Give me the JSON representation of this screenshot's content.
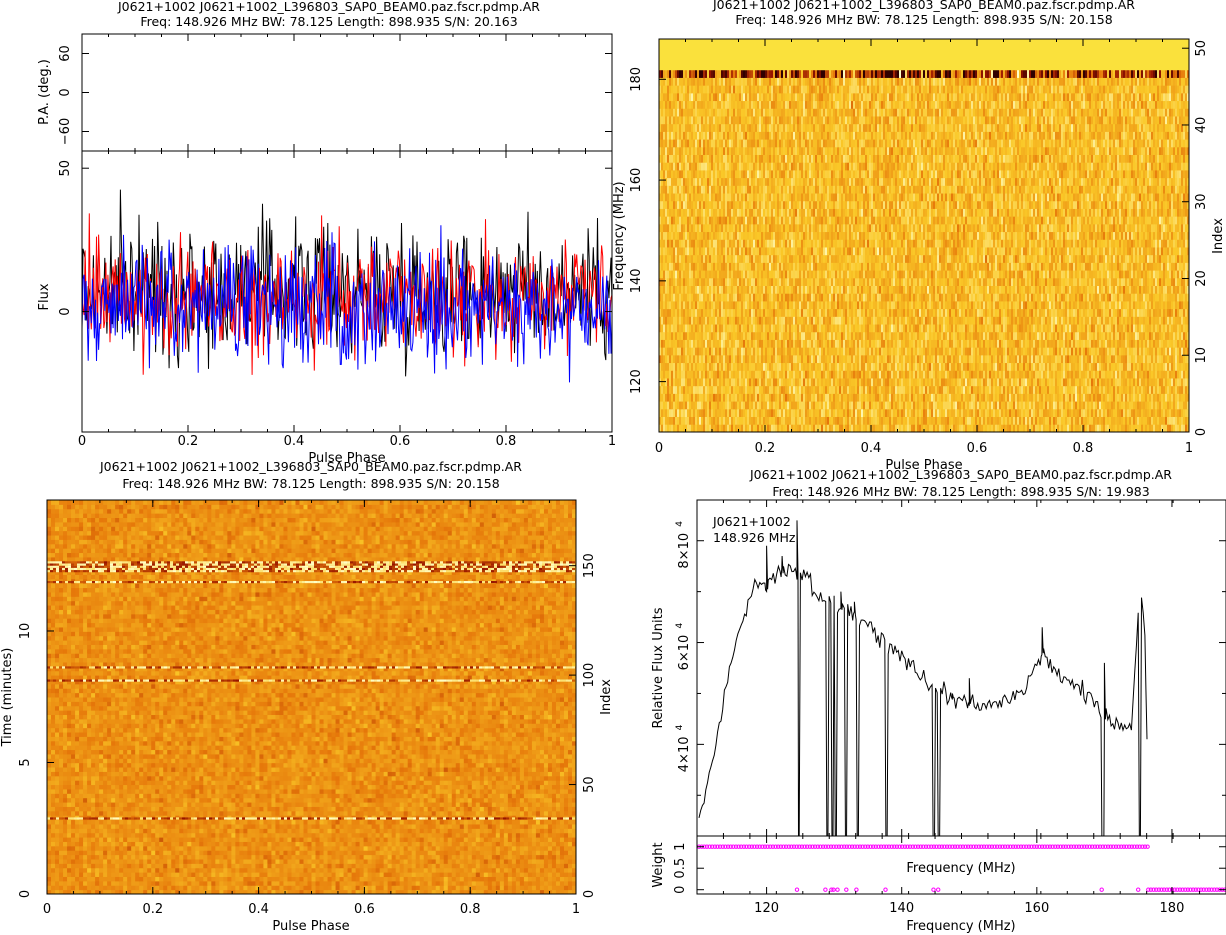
{
  "figure_title": "",
  "chart_data": [
    {
      "type": "line",
      "panel": "profile",
      "titles": [
        "J0621+1002  J0621+1002_L396803_SAP0_BEAM0.paz.fscr.pdmp.AR",
        "Freq: 148.926 MHz BW: 78.125 Length: 898.935 S/N: 20.163"
      ],
      "pa": {
        "ylabel": "P.A. (deg.)",
        "ylim": [
          -90,
          90
        ],
        "yticks": [
          -60,
          0,
          60
        ]
      },
      "flux": {
        "ylabel": "Flux",
        "ylim": [
          -42,
          56
        ],
        "yticks": [
          0,
          50
        ],
        "series": [
          {
            "color": "#000000",
            "mean": 8,
            "noise": 11
          },
          {
            "color": "#ff0000",
            "mean": 5,
            "noise": 10
          },
          {
            "color": "#0000ff",
            "mean": 2,
            "noise": 10
          }
        ],
        "n_bins": 512
      },
      "xlabel": "Pulse Phase",
      "xlim": [
        0,
        1
      ],
      "xticks": [
        0,
        0.2,
        0.4,
        0.6,
        0.8,
        1
      ]
    },
    {
      "type": "heatmap",
      "panel": "phase-frequency",
      "titles": [
        "J0621+1002  J0621+1002_L396803_SAP0_BEAM0.paz.fscr.pdmp.AR",
        "Freq: 148.926 MHz BW: 78.125 Length: 898.935 S/N: 20.158"
      ],
      "xlabel": "Pulse Phase",
      "xlim": [
        0,
        1
      ],
      "xticks": [
        0,
        0.2,
        0.4,
        0.6,
        0.8,
        1
      ],
      "ylabel": "Frequency (MHz)",
      "ylim": [
        110,
        188
      ],
      "yticks": [
        120,
        140,
        160,
        180
      ],
      "y2label": "Index",
      "y2lim": [
        0,
        51.2
      ],
      "y2ticks": [
        0,
        10,
        20,
        30,
        40,
        50
      ],
      "colormap": "heat",
      "rows": 51,
      "flagged_channel_index_ranges": [
        [
          47,
          51
        ]
      ],
      "bright_channel_index": 46
    },
    {
      "type": "heatmap",
      "panel": "phase-time",
      "titles": [
        "J0621+1002  J0621+1002_L396803_SAP0_BEAM0.paz.fscr.pdmp.AR",
        "Freq: 148.926 MHz BW: 78.125 Length: 898.935 S/N: 20.158"
      ],
      "xlabel": "Pulse Phase",
      "xlim": [
        0,
        1
      ],
      "xticks": [
        0,
        0.2,
        0.4,
        0.6,
        0.8,
        1
      ],
      "ylabel": "Time (minutes)",
      "ylim": [
        0,
        14.98
      ],
      "yticks": [
        0,
        5,
        10
      ],
      "y2label": "Index",
      "y2lim": [
        0,
        180
      ],
      "y2ticks": [
        0,
        50,
        100,
        150
      ],
      "colormap": "heat",
      "rows": 180,
      "highlight_subint_indices": [
        34,
        97,
        103,
        142,
        147,
        148,
        149,
        150,
        151
      ]
    },
    {
      "type": "line",
      "panel": "bandpass",
      "titles": [
        "J0621+1002  J0621+1002_L396803_SAP0_BEAM0.paz.fscr.pdmp.AR",
        "Freq: 148.926 MHz BW: 78.125 Length: 898.935 S/N: 19.983"
      ],
      "annotations": [
        "J0621+1002",
        "148.926 MHz"
      ],
      "ylabel": "Relative Flux Units",
      "ylim": [
        22000,
        88000
      ],
      "ytick_values": [
        40000,
        60000,
        80000
      ],
      "ytick_mantissas": [
        "4",
        "6",
        "8"
      ],
      "ytick_base": "10",
      "ytick_exp": "4",
      "xlabel": "Frequency (MHz)",
      "xlim": [
        109.7,
        188.0
      ],
      "xticks": [
        120,
        140,
        160,
        180
      ],
      "x": [
        110,
        112,
        114,
        116,
        117.5,
        119,
        120,
        121,
        122,
        123,
        124,
        126,
        127,
        128,
        130,
        132,
        134,
        136,
        138,
        140,
        142,
        144,
        146,
        148,
        150,
        152,
        154,
        156,
        158,
        159,
        160,
        161,
        162,
        164,
        166,
        168,
        169,
        170,
        172,
        174,
        175,
        175.5,
        176,
        176.3
      ],
      "y": [
        26000,
        36000,
        52000,
        63000,
        69000,
        72000,
        70000,
        73000,
        72500,
        75000,
        74000,
        73500,
        71000,
        69000,
        67000,
        66000,
        65000,
        62000,
        59000,
        57000,
        55000,
        52000,
        50000,
        49000,
        48000,
        47500,
        48000,
        49000,
        51000,
        53000,
        56000,
        58000,
        55000,
        53000,
        51000,
        50000,
        48000,
        45000,
        44000,
        43500,
        66000,
        70000,
        62000,
        41000
      ],
      "spikes": [
        [
          120.0,
          79000
        ],
        [
          122.3,
          77000
        ],
        [
          124.5,
          84000
        ],
        [
          131.0,
          70000
        ],
        [
          133.0,
          68000
        ],
        [
          147.5,
          50000
        ],
        [
          150.0,
          53000
        ],
        [
          160.8,
          63000
        ],
        [
          170.0,
          56000
        ]
      ],
      "dips": [
        124.8,
        128.9,
        129.8,
        130.3,
        131.8,
        133.5,
        137.8,
        144.8,
        145.5,
        169.8,
        175.2
      ],
      "weight": {
        "ylabel": "Weight",
        "ylim": [
          -0.1,
          1.25
        ],
        "yticks": [
          0,
          0.5,
          1
        ],
        "xlabel": "Frequency (MHz)",
        "zero_points_mhz": [
          124.5,
          128.7,
          129.6,
          129.9,
          130.5,
          131.8,
          133.3,
          137.6,
          144.7,
          145.4,
          169.6,
          175.0
        ],
        "zero_from_mhz": 176.5,
        "one_range_mhz": [
          110,
          176.5
        ]
      }
    }
  ]
}
